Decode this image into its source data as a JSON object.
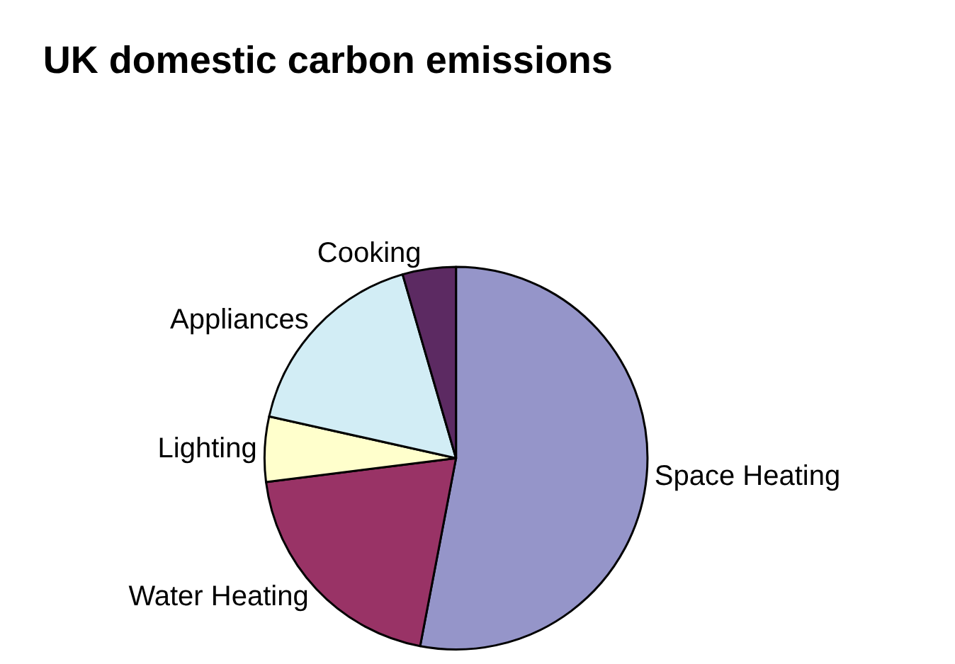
{
  "chart_data": {
    "type": "pie",
    "title": "UK domestic carbon emissions",
    "categories": [
      "Space Heating",
      "Water Heating",
      "Lighting",
      "Appliances",
      "Cooking"
    ],
    "values": [
      53,
      20,
      5.5,
      17,
      4.5
    ],
    "colors": [
      "#9595c9",
      "#993366",
      "#ffffcc",
      "#d2edf5",
      "#5c2a62"
    ],
    "legend": false
  }
}
